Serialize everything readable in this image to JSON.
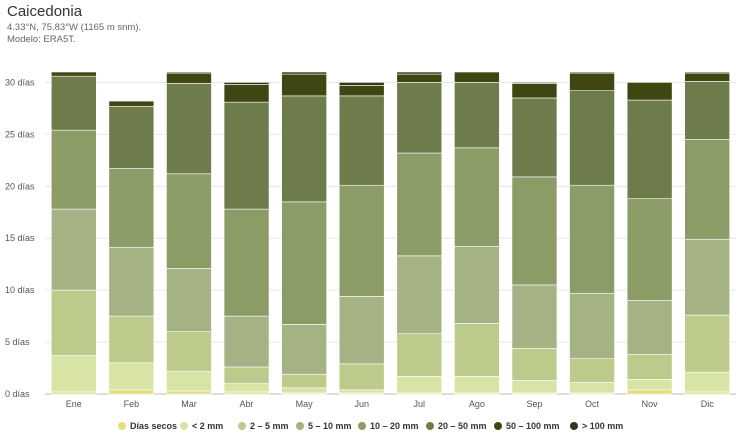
{
  "header": {
    "title": "Caicedonia",
    "location": "4.33°N, 75.83°W (1165 m snm).",
    "model": "Modelo: ERA5T."
  },
  "chart_data": {
    "type": "bar",
    "stacked": true,
    "categories": [
      "Ene",
      "Feb",
      "Mar",
      "Abr",
      "May",
      "Jun",
      "Jul",
      "Ago",
      "Sep",
      "Oct",
      "Nov",
      "Dic"
    ],
    "y_unit": "días",
    "ylim": [
      0,
      31
    ],
    "y_ticks": [
      0,
      5,
      10,
      15,
      20,
      25,
      30
    ],
    "y_tick_labels": [
      "0 días",
      "5 días",
      "10 días",
      "15 días",
      "20 días",
      "25 días",
      "30 días"
    ],
    "grid": true,
    "legend_position": "bottom",
    "series": [
      {
        "name": "Días secos",
        "color": "#e3df7f",
        "values": [
          0.2,
          0.4,
          0.3,
          0.2,
          0.1,
          0.1,
          0.1,
          0.1,
          0.1,
          0.1,
          0.4,
          0.2
        ]
      },
      {
        "name": "< 2 mm",
        "color": "#d7e4a6",
        "values": [
          3.5,
          2.6,
          1.9,
          0.8,
          0.5,
          0.3,
          1.6,
          1.6,
          1.2,
          1.0,
          1.0,
          1.9
        ]
      },
      {
        "name": "2 – 5 mm",
        "color": "#bccb8c",
        "values": [
          6.3,
          4.5,
          3.8,
          1.6,
          1.3,
          2.5,
          4.1,
          5.1,
          3.1,
          2.3,
          2.4,
          5.5
        ]
      },
      {
        "name": "5 – 10 mm",
        "color": "#a5b384",
        "values": [
          7.8,
          6.6,
          6.1,
          4.9,
          4.8,
          6.5,
          7.5,
          7.4,
          6.1,
          6.3,
          5.2,
          7.3
        ]
      },
      {
        "name": "10 – 20 mm",
        "color": "#8c9c66",
        "values": [
          7.6,
          7.6,
          9.1,
          10.3,
          11.8,
          10.7,
          9.9,
          9.5,
          10.4,
          10.4,
          9.8,
          9.6
        ]
      },
      {
        "name": "20 – 50 mm",
        "color": "#6e7c4b",
        "values": [
          5.2,
          6.0,
          8.7,
          10.3,
          10.2,
          8.6,
          6.8,
          6.3,
          7.6,
          9.1,
          9.5,
          5.6
        ]
      },
      {
        "name": "50 – 100 mm",
        "color": "#3f4612",
        "values": [
          0.4,
          0.5,
          1.0,
          1.7,
          2.1,
          1.0,
          0.8,
          1.0,
          1.4,
          1.7,
          1.7,
          0.8
        ]
      },
      {
        "name": "> 100 mm",
        "color": "#30371b",
        "values": [
          0,
          0,
          0.1,
          0.2,
          0.2,
          0.3,
          0.2,
          0,
          0.1,
          0.1,
          0,
          0.1
        ]
      }
    ]
  }
}
